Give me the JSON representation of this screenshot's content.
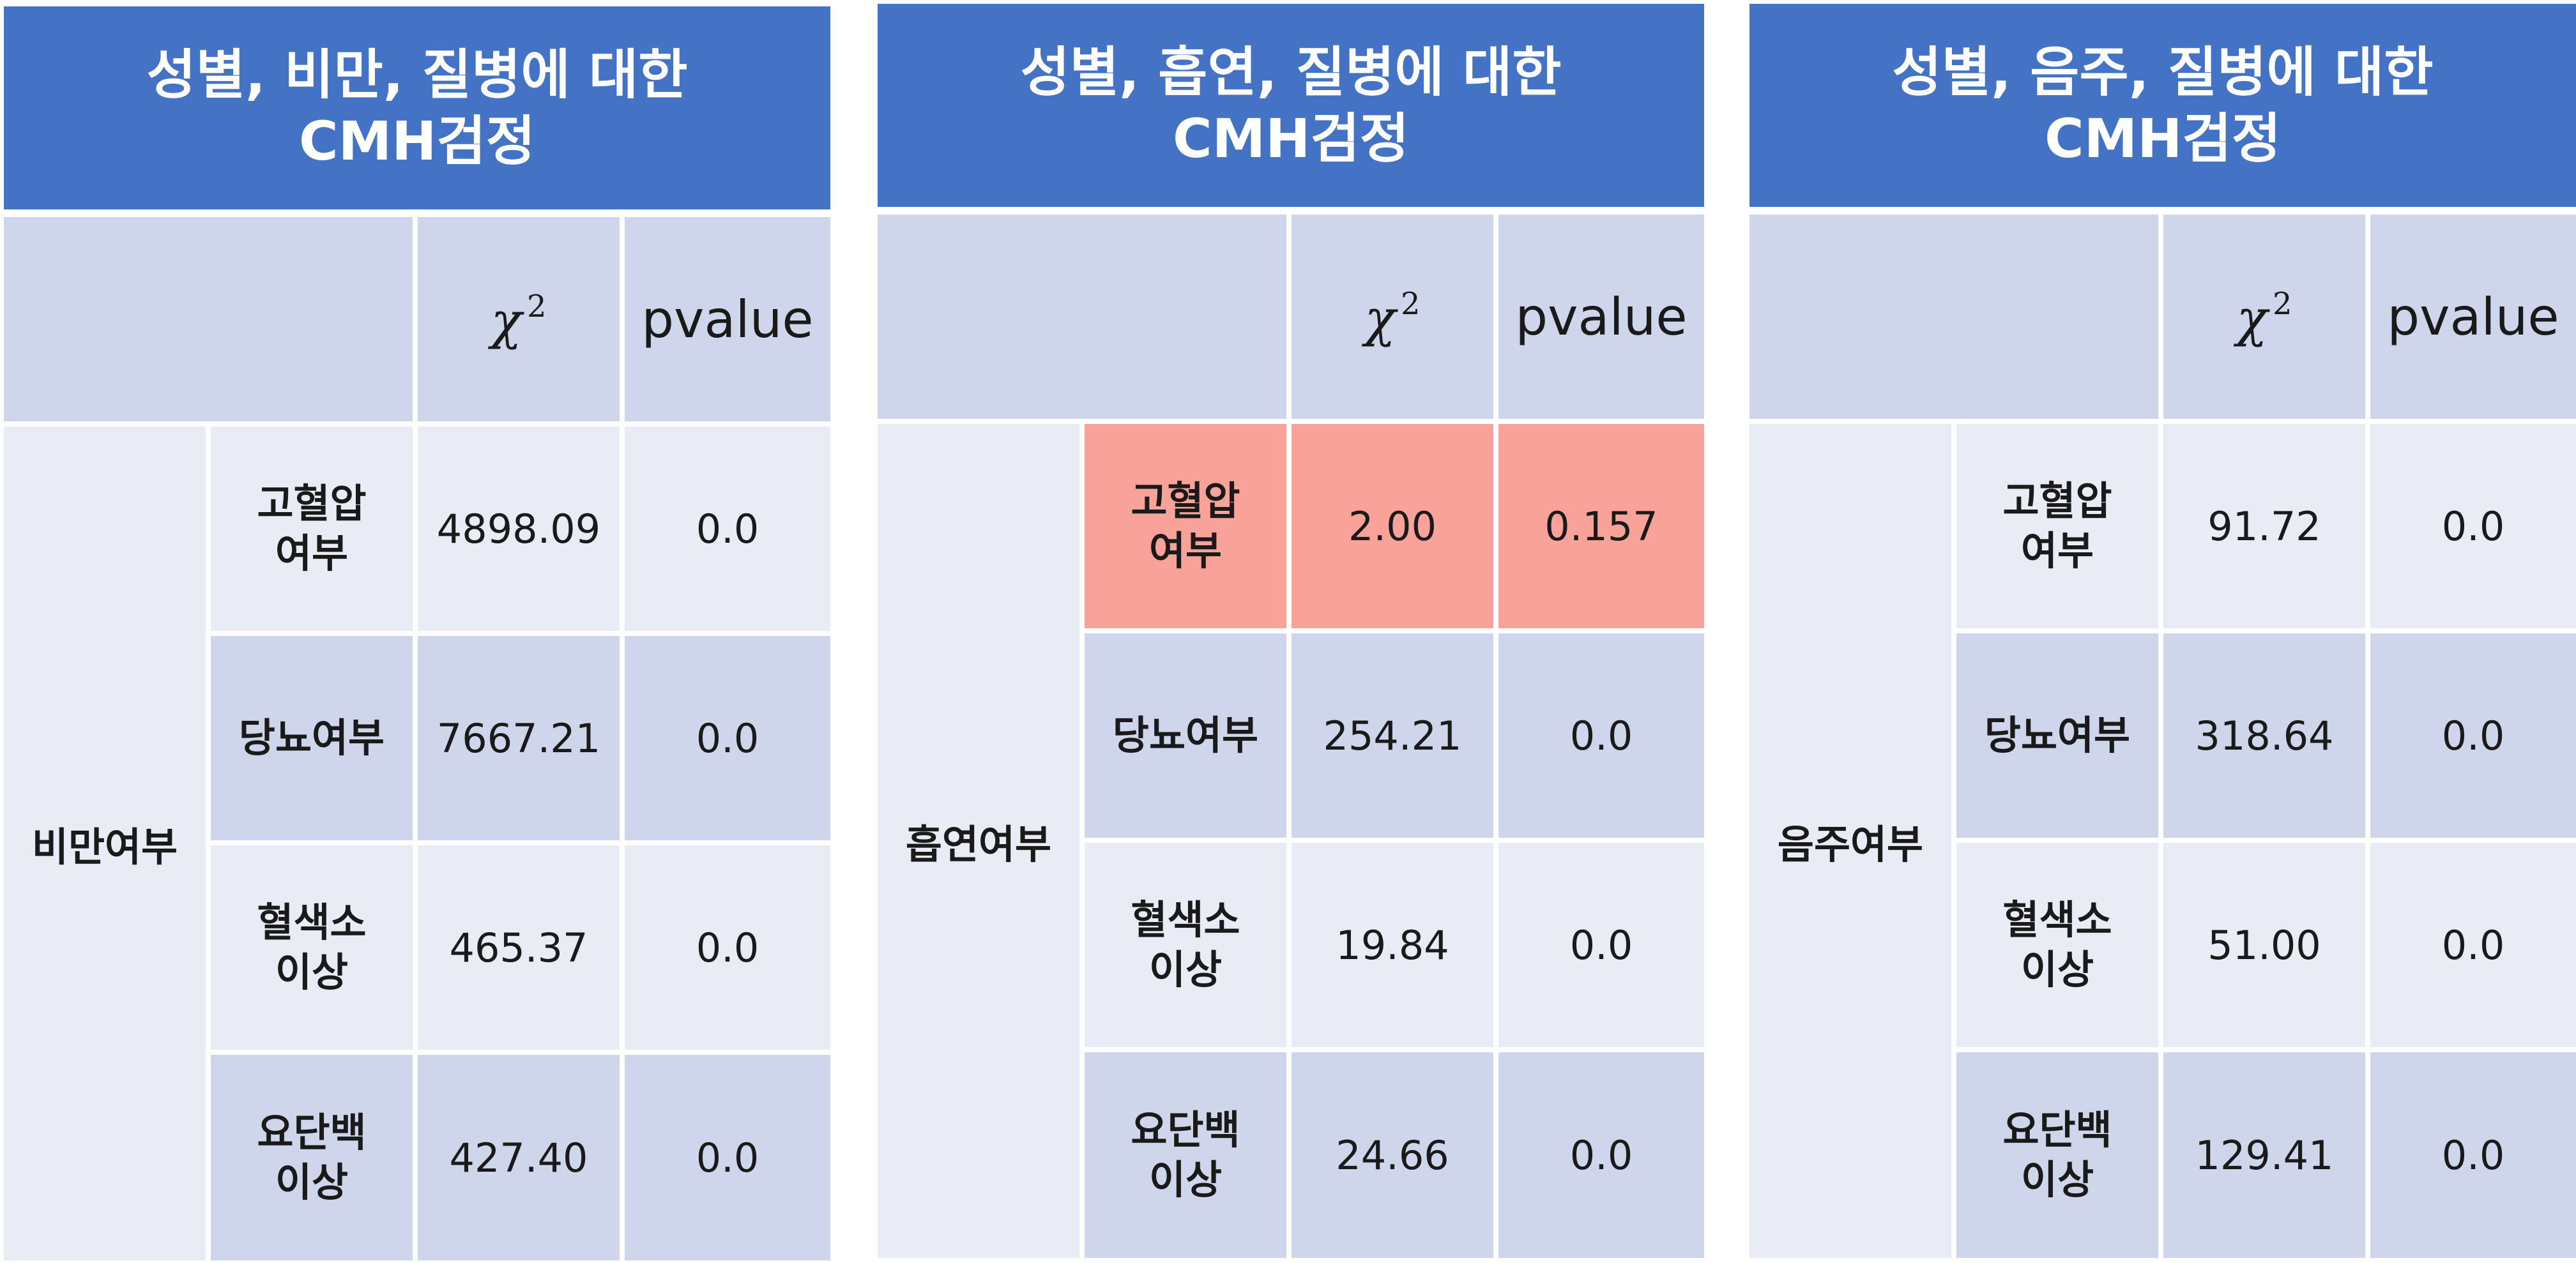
{
  "colors": {
    "header_bg": "#4472C4",
    "header_text": "#ffffff",
    "cell_dark": "#CFD5EA",
    "cell_light": "#E9EBF5",
    "highlight": "#F8A29A"
  },
  "column_headers": {
    "chi_symbol": "χ",
    "chi_exponent": "2",
    "pvalue": "pvalue"
  },
  "panels": [
    {
      "title_line1": "성별, 비만, 질병에 대한",
      "title_line2": "CMH검정",
      "group": "비만여부",
      "rows": [
        {
          "label_line1": "고혈압",
          "label_line2": "여부",
          "chi2": "4898.09",
          "pvalue": "0.0"
        },
        {
          "label_line1": "당뇨여부",
          "label_line2": "",
          "chi2": "7667.21",
          "pvalue": "0.0"
        },
        {
          "label_line1": "혈색소",
          "label_line2": "이상",
          "chi2": "465.37",
          "pvalue": "0.0"
        },
        {
          "label_line1": "요단백",
          "label_line2": "이상",
          "chi2": "427.40",
          "pvalue": "0.0"
        }
      ]
    },
    {
      "title_line1": "성별, 흡연, 질병에 대한",
      "title_line2": "CMH검정",
      "group": "흡연여부",
      "rows": [
        {
          "label_line1": "고혈압",
          "label_line2": "여부",
          "chi2": "2.00",
          "pvalue": "0.157"
        },
        {
          "label_line1": "당뇨여부",
          "label_line2": "",
          "chi2": "254.21",
          "pvalue": "0.0"
        },
        {
          "label_line1": "혈색소",
          "label_line2": "이상",
          "chi2": "19.84",
          "pvalue": "0.0"
        },
        {
          "label_line1": "요단백",
          "label_line2": "이상",
          "chi2": "24.66",
          "pvalue": "0.0"
        }
      ]
    },
    {
      "title_line1": "성별, 음주, 질병에 대한",
      "title_line2": "CMH검정",
      "group": "음주여부",
      "rows": [
        {
          "label_line1": "고혈압",
          "label_line2": "여부",
          "chi2": "91.72",
          "pvalue": "0.0"
        },
        {
          "label_line1": "당뇨여부",
          "label_line2": "",
          "chi2": "318.64",
          "pvalue": "0.0"
        },
        {
          "label_line1": "혈색소",
          "label_line2": "이상",
          "chi2": "51.00",
          "pvalue": "0.0"
        },
        {
          "label_line1": "요단백",
          "label_line2": "이상",
          "chi2": "129.41",
          "pvalue": "0.0"
        }
      ]
    }
  ]
}
